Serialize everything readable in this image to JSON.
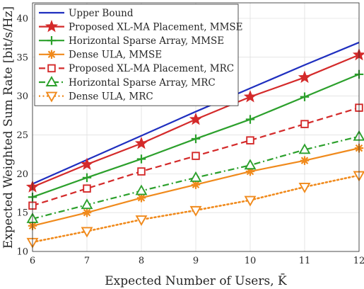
{
  "chart_data": {
    "type": "line",
    "xlabel": "Expected Number of Users, K̄",
    "ylabel": "Expected Weighted Sum Rate [bit/s/Hz]",
    "x": [
      6,
      7,
      8,
      9,
      10,
      11,
      12
    ],
    "xlim": [
      6,
      12
    ],
    "ylim": [
      10,
      42
    ],
    "xticks": [
      6,
      7,
      8,
      9,
      10,
      11,
      12
    ],
    "yticks": [
      10,
      15,
      20,
      25,
      30,
      35,
      40
    ],
    "grid": true,
    "legend_position": "top-left",
    "series": [
      {
        "name": "Upper Bound",
        "color": "#1f2fbf",
        "marker": "none",
        "dash": "solid",
        "values": [
          18.7,
          21.8,
          24.9,
          28.0,
          31.0,
          34.0,
          36.9
        ]
      },
      {
        "name": "Proposed XL-MA Placement, MMSE",
        "color": "#d42a2a",
        "marker": "star",
        "dash": "solid",
        "values": [
          18.3,
          21.2,
          23.9,
          27.0,
          29.9,
          32.4,
          35.3
        ]
      },
      {
        "name": "Horizontal Sparse Array, MMSE",
        "color": "#2ca02c",
        "marker": "plus",
        "dash": "solid",
        "values": [
          17.0,
          19.5,
          21.9,
          24.5,
          27.0,
          29.9,
          32.8
        ]
      },
      {
        "name": "Dense ULA, MMSE",
        "color": "#f08a1c",
        "marker": "asterisk",
        "dash": "solid",
        "values": [
          13.3,
          15.0,
          16.9,
          18.6,
          20.3,
          21.7,
          23.3
        ]
      },
      {
        "name": "Proposed XL-MA Placement, MRC",
        "color": "#d42a2a",
        "marker": "square",
        "dash": "dashed",
        "values": [
          15.9,
          18.1,
          20.3,
          22.3,
          24.3,
          26.4,
          28.5
        ]
      },
      {
        "name": "Horizontal Sparse Array, MRC",
        "color": "#2ca02c",
        "marker": "triangle-up",
        "dash": "dashdot",
        "values": [
          14.2,
          16.0,
          17.8,
          19.5,
          21.1,
          23.1,
          24.8
        ]
      },
      {
        "name": "Dense ULA, MRC",
        "color": "#f08a1c",
        "marker": "triangle-down",
        "dash": "dotted",
        "values": [
          11.2,
          12.6,
          14.1,
          15.3,
          16.6,
          18.3,
          19.8
        ]
      }
    ]
  }
}
